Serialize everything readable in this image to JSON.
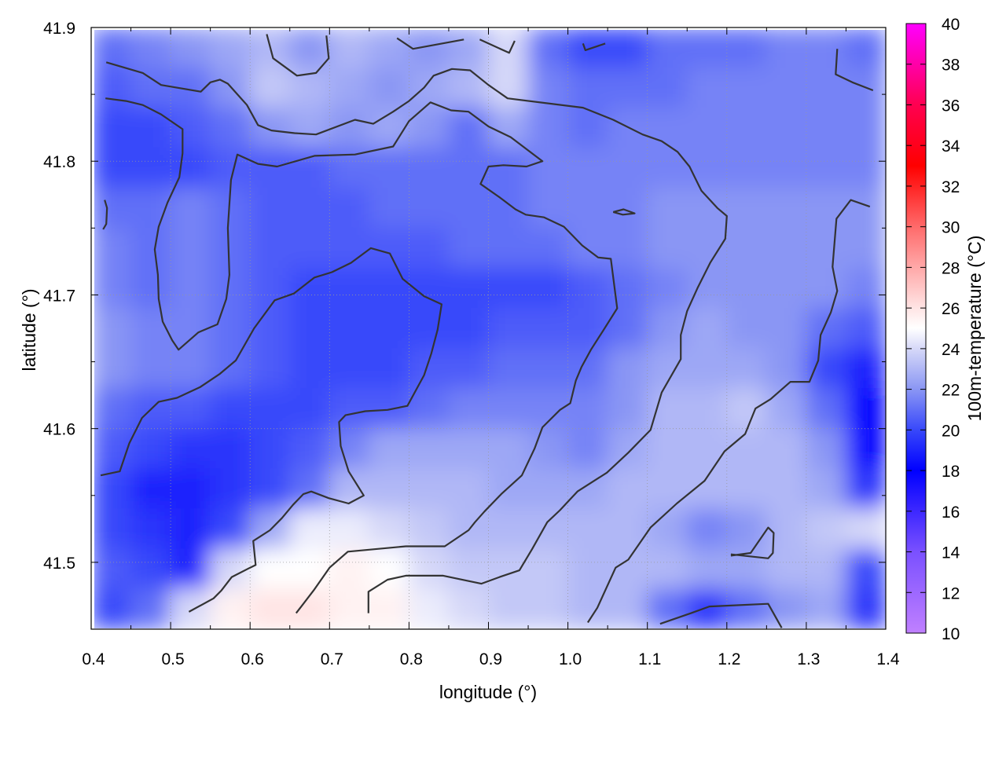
{
  "chart_data": {
    "type": "heatmap",
    "xlabel": "longitude (°)",
    "ylabel": "latitude (°)",
    "colorbar_label": "100m-temperature (°C)",
    "xlim": [
      0.4,
      1.4
    ],
    "ylim": [
      41.45,
      41.9
    ],
    "zlim": [
      10,
      40
    ],
    "grid": true,
    "x_ticks": [
      "0.4",
      "0.5",
      "0.6",
      "0.7",
      "0.8",
      "0.9",
      "1.0",
      "1.1",
      "1.2",
      "1.3",
      "1.4"
    ],
    "y_ticks": [
      "41.5",
      "41.6",
      "41.7",
      "41.8",
      "41.9"
    ],
    "colorbar_ticks": [
      "10",
      "12",
      "14",
      "16",
      "18",
      "20",
      "22",
      "24",
      "26",
      "28",
      "30",
      "32",
      "34",
      "36",
      "38",
      "40"
    ],
    "palette": [
      {
        "value": 10,
        "color": "#c080ff"
      },
      {
        "value": 14,
        "color": "#7a50ff"
      },
      {
        "value": 18,
        "color": "#0000ff"
      },
      {
        "value": 20,
        "color": "#3848fa"
      },
      {
        "value": 22,
        "color": "#8a96f4"
      },
      {
        "value": 24,
        "color": "#d6d8f8"
      },
      {
        "value": 25,
        "color": "#ffffff"
      },
      {
        "value": 26,
        "color": "#ffe4e4"
      },
      {
        "value": 28,
        "color": "#ffa8a8"
      },
      {
        "value": 30,
        "color": "#ff6a6a"
      },
      {
        "value": 33,
        "color": "#ff0000"
      },
      {
        "value": 36,
        "color": "#ff0050"
      },
      {
        "value": 40,
        "color": "#ff00ff"
      }
    ],
    "grid_lon": [
      0.425,
      0.475,
      0.525,
      0.575,
      0.625,
      0.675,
      0.725,
      0.775,
      0.825,
      0.875,
      0.925,
      0.975,
      1.025,
      1.075,
      1.125,
      1.175,
      1.225,
      1.275,
      1.325,
      1.375
    ],
    "grid_lat": [
      41.885,
      41.855,
      41.825,
      41.795,
      41.765,
      41.735,
      41.705,
      41.675,
      41.645,
      41.615,
      41.585,
      41.555,
      41.525,
      41.495,
      41.465
    ],
    "temperature": [
      [
        21,
        21.5,
        22,
        22.5,
        23,
        22,
        23,
        22.5,
        22,
        22.5,
        24,
        21,
        20,
        20,
        21,
        21,
        21,
        21.5,
        21.5,
        21
      ],
      [
        20.5,
        21,
        21,
        22,
        23.5,
        23,
        22.5,
        22,
        22.5,
        23,
        24,
        21.5,
        21,
        21,
        21,
        21.5,
        21.5,
        21.5,
        21.5,
        21.5
      ],
      [
        20,
        20,
        20.5,
        21,
        22,
        22.5,
        22,
        22.5,
        22,
        21,
        22.5,
        21.5,
        21,
        21.5,
        21.5,
        21.5,
        21.5,
        21.5,
        21.5,
        21.5
      ],
      [
        20,
        20,
        20,
        20.5,
        20.5,
        20.5,
        21,
        21,
        21,
        21,
        21,
        21.5,
        21.5,
        21.5,
        21.5,
        21.5,
        21.5,
        21.5,
        21.5,
        21.5
      ],
      [
        21,
        21,
        21.5,
        21,
        20.5,
        20.5,
        20.5,
        21,
        21,
        21,
        21,
        21.5,
        21.5,
        21.5,
        22,
        22,
        22,
        22,
        22,
        22
      ],
      [
        21.5,
        21,
        21.5,
        21,
        20.5,
        20.5,
        20.5,
        20.5,
        20.5,
        21,
        21,
        21,
        21.5,
        21.5,
        22,
        22,
        22,
        22,
        22,
        22
      ],
      [
        21.5,
        21,
        21.5,
        21,
        20.5,
        20,
        20,
        20,
        20,
        20,
        20,
        20,
        20.5,
        21,
        21.5,
        22,
        22,
        22,
        22,
        21.5
      ],
      [
        22,
        21.5,
        21.5,
        21,
        20.5,
        20,
        20,
        20,
        20,
        20,
        20.5,
        20.5,
        20.5,
        21,
        22,
        22.5,
        22,
        22,
        21,
        20.5
      ],
      [
        22,
        21.5,
        21.5,
        21,
        20.5,
        20,
        20,
        20,
        20.5,
        20.5,
        21,
        21,
        21,
        22,
        22.5,
        22.5,
        22.5,
        22,
        20,
        19
      ],
      [
        21,
        20.5,
        20.5,
        20,
        20,
        20,
        20.5,
        20.5,
        21,
        21.5,
        21.5,
        21.5,
        21.5,
        22,
        23,
        23,
        23.5,
        22.5,
        21,
        18
      ],
      [
        20.5,
        20,
        19.5,
        19.5,
        20,
        20.5,
        21.5,
        22.5,
        22.5,
        22.5,
        22.5,
        22,
        21.5,
        22.5,
        23,
        23,
        23,
        23,
        22,
        18
      ],
      [
        20,
        19,
        19,
        19.5,
        20,
        21,
        23,
        23,
        23,
        23,
        22.5,
        22.5,
        22.5,
        23,
        23,
        23,
        23,
        23,
        22.5,
        19.5
      ],
      [
        20,
        19.5,
        19,
        20,
        22.5,
        24.5,
        24.5,
        24,
        23.5,
        23,
        23,
        23,
        23,
        23,
        22.5,
        21.5,
        22,
        23,
        23.5,
        24
      ],
      [
        20.5,
        20,
        19,
        24,
        25,
        25,
        25.5,
        25,
        24,
        23.5,
        23.5,
        23.5,
        23,
        23,
        23,
        22.5,
        22.5,
        23,
        23,
        20
      ],
      [
        20,
        21,
        24,
        25.5,
        26,
        26,
        25.5,
        25.5,
        24.5,
        24,
        23.5,
        23.5,
        23,
        23,
        21,
        19.5,
        21,
        22,
        22.5,
        19.5
      ]
    ],
    "contour_color": "#333333",
    "contours": [
      [
        [
          0.419,
          41.874
        ],
        [
          0.465,
          41.866
        ],
        [
          0.488,
          41.857
        ],
        [
          0.538,
          41.852
        ],
        [
          0.55,
          41.859
        ],
        [
          0.562,
          41.861
        ],
        [
          0.572,
          41.858
        ],
        [
          0.596,
          41.842
        ],
        [
          0.61,
          41.827
        ],
        [
          0.627,
          41.823
        ],
        [
          0.656,
          41.821
        ],
        [
          0.683,
          41.82
        ],
        [
          0.732,
          41.831
        ],
        [
          0.755,
          41.828
        ],
        [
          0.78,
          41.837
        ],
        [
          0.8,
          41.845
        ],
        [
          0.819,
          41.855
        ],
        [
          0.831,
          41.864
        ],
        [
          0.854,
          41.869
        ],
        [
          0.877,
          41.868
        ],
        [
          0.9,
          41.857
        ],
        [
          0.924,
          41.847
        ],
        [
          1.019,
          41.84
        ],
        [
          1.057,
          41.831
        ],
        [
          1.094,
          41.82
        ],
        [
          1.118,
          41.815
        ],
        [
          1.138,
          41.807
        ],
        [
          1.153,
          41.796
        ],
        [
          1.168,
          41.778
        ],
        [
          1.188,
          41.765
        ],
        [
          1.2,
          41.759
        ],
        [
          1.198,
          41.742
        ],
        [
          1.179,
          41.724
        ],
        [
          1.163,
          41.705
        ],
        [
          1.15,
          41.688
        ],
        [
          1.142,
          41.67
        ],
        [
          1.142,
          41.652
        ],
        [
          1.118,
          41.627
        ],
        [
          1.104,
          41.599
        ],
        [
          1.076,
          41.582
        ],
        [
          1.049,
          41.567
        ],
        [
          1.012,
          41.553
        ],
        [
          0.99,
          41.539
        ],
        [
          0.974,
          41.53
        ],
        [
          0.955,
          41.51
        ],
        [
          0.939,
          41.494
        ],
        [
          0.914,
          41.489
        ],
        [
          0.891,
          41.484
        ],
        [
          0.843,
          41.49
        ],
        [
          0.796,
          41.49
        ],
        [
          0.773,
          41.487
        ],
        [
          0.749,
          41.478
        ],
        [
          0.749,
          41.462
        ]
      ],
      [
        [
          0.412,
          41.565
        ],
        [
          0.436,
          41.568
        ],
        [
          0.448,
          41.589
        ],
        [
          0.464,
          41.608
        ],
        [
          0.485,
          41.62
        ],
        [
          0.508,
          41.623
        ],
        [
          0.537,
          41.631
        ],
        [
          0.562,
          41.641
        ],
        [
          0.582,
          41.651
        ],
        [
          0.605,
          41.675
        ],
        [
          0.631,
          41.696
        ],
        [
          0.655,
          41.701
        ],
        [
          0.681,
          41.713
        ],
        [
          0.703,
          41.717
        ],
        [
          0.727,
          41.724
        ],
        [
          0.752,
          41.735
        ],
        [
          0.776,
          41.731
        ],
        [
          0.792,
          41.712
        ],
        [
          0.819,
          41.699
        ],
        [
          0.841,
          41.693
        ],
        [
          0.836,
          41.674
        ],
        [
          0.828,
          41.656
        ],
        [
          0.819,
          41.64
        ],
        [
          0.798,
          41.617
        ],
        [
          0.773,
          41.614
        ],
        [
          0.745,
          41.613
        ],
        [
          0.72,
          41.61
        ],
        [
          0.712,
          41.605
        ],
        [
          0.714,
          41.587
        ],
        [
          0.724,
          41.568
        ],
        [
          0.743,
          41.55
        ],
        [
          0.724,
          41.544
        ],
        [
          0.699,
          41.548
        ],
        [
          0.677,
          41.553
        ],
        [
          0.667,
          41.551
        ],
        [
          0.654,
          41.543
        ],
        [
          0.64,
          41.533
        ],
        [
          0.625,
          41.524
        ],
        [
          0.604,
          41.516
        ],
        [
          0.607,
          41.498
        ],
        [
          0.6,
          41.496
        ],
        [
          0.577,
          41.489
        ],
        [
          0.564,
          41.479
        ],
        [
          0.554,
          41.473
        ],
        [
          0.523,
          41.463
        ]
      ],
      [
        [
          0.418,
          41.847
        ],
        [
          0.444,
          41.845
        ],
        [
          0.465,
          41.842
        ],
        [
          0.488,
          41.835
        ],
        [
          0.515,
          41.824
        ],
        [
          0.515,
          41.806
        ],
        [
          0.511,
          41.788
        ],
        [
          0.496,
          41.769
        ],
        [
          0.485,
          41.751
        ],
        [
          0.48,
          41.734
        ],
        [
          0.484,
          41.715
        ],
        [
          0.485,
          41.697
        ],
        [
          0.49,
          41.68
        ],
        [
          0.502,
          41.666
        ],
        [
          0.51,
          41.659
        ],
        [
          0.535,
          41.672
        ],
        [
          0.559,
          41.678
        ],
        [
          0.57,
          41.697
        ],
        [
          0.574,
          41.715
        ],
        [
          0.572,
          41.75
        ],
        [
          0.576,
          41.786
        ],
        [
          0.584,
          41.805
        ],
        [
          0.61,
          41.798
        ],
        [
          0.634,
          41.796
        ],
        [
          0.681,
          41.804
        ],
        [
          0.732,
          41.805
        ],
        [
          0.78,
          41.811
        ],
        [
          0.8,
          41.83
        ],
        [
          0.827,
          41.844
        ],
        [
          0.853,
          41.838
        ],
        [
          0.875,
          41.837
        ],
        [
          0.9,
          41.826
        ],
        [
          0.928,
          41.818
        ],
        [
          0.968,
          41.8
        ],
        [
          0.948,
          41.796
        ],
        [
          0.919,
          41.797
        ],
        [
          0.9,
          41.796
        ],
        [
          0.89,
          41.783
        ],
        [
          0.914,
          41.773
        ],
        [
          0.934,
          41.764
        ],
        [
          0.947,
          41.76
        ],
        [
          0.97,
          41.758
        ],
        [
          0.995,
          41.751
        ],
        [
          1.018,
          41.737
        ],
        [
          1.038,
          41.728
        ],
        [
          1.054,
          41.727
        ],
        [
          1.062,
          41.69
        ],
        [
          1.044,
          41.673
        ],
        [
          1.029,
          41.659
        ],
        [
          1.017,
          41.646
        ],
        [
          1.01,
          41.636
        ],
        [
          1.003,
          41.619
        ],
        [
          0.99,
          41.614
        ],
        [
          0.968,
          41.601
        ],
        [
          0.958,
          41.585
        ],
        [
          0.942,
          41.565
        ],
        [
          0.916,
          41.551
        ],
        [
          0.895,
          41.538
        ],
        [
          0.883,
          41.53
        ],
        [
          0.875,
          41.524
        ],
        [
          0.845,
          41.512
        ],
        [
          0.796,
          41.512
        ],
        [
          0.723,
          41.508
        ],
        [
          0.7,
          41.496
        ],
        [
          0.68,
          41.479
        ],
        [
          0.658,
          41.462
        ]
      ],
      [
        [
          1.38,
          41.766
        ],
        [
          1.356,
          41.771
        ],
        [
          1.338,
          41.757
        ],
        [
          1.333,
          41.721
        ],
        [
          1.339,
          41.703
        ],
        [
          1.331,
          41.687
        ],
        [
          1.318,
          41.67
        ],
        [
          1.315,
          41.651
        ],
        [
          1.304,
          41.635
        ],
        [
          1.28,
          41.635
        ],
        [
          1.255,
          41.622
        ],
        [
          1.236,
          41.615
        ],
        [
          1.223,
          41.596
        ],
        [
          1.197,
          41.583
        ],
        [
          1.172,
          41.561
        ],
        [
          1.137,
          41.544
        ],
        [
          1.104,
          41.526
        ],
        [
          1.076,
          41.502
        ],
        [
          1.06,
          41.496
        ],
        [
          1.037,
          41.466
        ],
        [
          1.025,
          41.455
        ]
      ],
      [
        [
          0.621,
          41.895
        ],
        [
          0.629,
          41.877
        ],
        [
          0.659,
          41.864
        ],
        [
          0.683,
          41.866
        ],
        [
          0.699,
          41.877
        ],
        [
          0.696,
          41.894
        ]
      ],
      [
        [
          0.785,
          41.892
        ],
        [
          0.805,
          41.884
        ],
        [
          0.869,
          41.891
        ]
      ],
      [
        [
          0.889,
          41.891
        ],
        [
          0.926,
          41.881
        ],
        [
          0.933,
          41.89
        ]
      ],
      [
        [
          1.019,
          41.888
        ],
        [
          1.022,
          41.883
        ],
        [
          1.047,
          41.888
        ]
      ],
      [
        [
          1.339,
          41.884
        ],
        [
          1.337,
          41.865
        ],
        [
          1.358,
          41.859
        ],
        [
          1.384,
          41.853
        ]
      ],
      [
        [
          0.417,
          41.771
        ],
        [
          0.42,
          41.765
        ],
        [
          0.419,
          41.753
        ],
        [
          0.415,
          41.749
        ]
      ],
      [
        [
          1.057,
          41.762
        ],
        [
          1.07,
          41.764
        ],
        [
          1.084,
          41.761
        ],
        [
          1.069,
          41.76
        ],
        [
          1.057,
          41.762
        ]
      ],
      [
        [
          1.205,
          41.505
        ],
        [
          1.23,
          41.507
        ],
        [
          1.252,
          41.526
        ],
        [
          1.259,
          41.522
        ],
        [
          1.258,
          41.507
        ],
        [
          1.252,
          41.503
        ],
        [
          1.205,
          41.506
        ]
      ],
      [
        [
          1.116,
          41.454
        ],
        [
          1.155,
          41.462
        ],
        [
          1.178,
          41.467
        ],
        [
          1.252,
          41.469
        ],
        [
          1.269,
          41.451
        ]
      ]
    ]
  }
}
